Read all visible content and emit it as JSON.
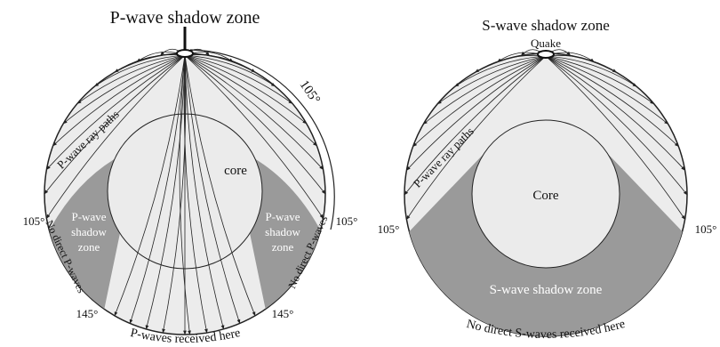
{
  "left": {
    "title": "P-wave shadow zone",
    "arc_label": "105°",
    "ray_label": "P-wave ray paths",
    "core": "core",
    "angle_left": "105°",
    "angle_right": "105°",
    "shadow_left": [
      "P-wave",
      "shadow",
      "zone"
    ],
    "shadow_right": [
      "P-wave",
      "shadow",
      "zone"
    ],
    "no_direct_left": "No direct P-waves",
    "no_direct_right": "No direct P-waves",
    "angle_145_left": "145°",
    "angle_145_right": "145°",
    "received": "P-waves received here"
  },
  "right": {
    "title": "S-wave shadow zone",
    "quake": "Quake",
    "ray_label": "P-wave ray paths",
    "core": "Core",
    "angle_left": "105°",
    "angle_right": "105°",
    "shadow": "S-wave shadow zone",
    "no_direct": "No direct S-waves received here"
  }
}
